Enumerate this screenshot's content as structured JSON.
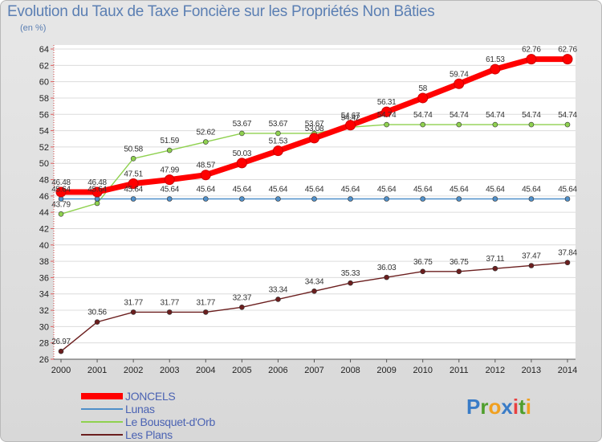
{
  "title": "Evolution du Taux de Taxe Foncière sur les Propriétés Non Bâties",
  "unit": "(en %)",
  "logo": "Proxiti",
  "chart_data": {
    "type": "line",
    "x": [
      "2000",
      "2001",
      "2002",
      "2003",
      "2004",
      "2005",
      "2006",
      "2007",
      "2008",
      "2009",
      "2010",
      "2011",
      "2012",
      "2013",
      "2014"
    ],
    "y_ticks": [
      "26",
      "28",
      "30",
      "32",
      "34",
      "36",
      "38",
      "40",
      "42",
      "44",
      "46",
      "48",
      "50",
      "52",
      "54",
      "56",
      "58",
      "60",
      "62",
      "64"
    ],
    "ylim": [
      26,
      64
    ],
    "series": [
      {
        "name": "JONCELS",
        "color": "#ff0000",
        "values": [
          46.48,
          46.48,
          47.51,
          47.99,
          48.57,
          50.03,
          51.53,
          53.08,
          54.67,
          56.31,
          58,
          59.74,
          61.53,
          62.76,
          62.76
        ],
        "labels": [
          "46.48",
          "46.48",
          "47.51",
          "47.99",
          "48.57",
          "50.03",
          "51.53",
          "53.08",
          "54.67",
          "56.31",
          "58",
          "59.74",
          "61.53",
          "62.76",
          "62.76"
        ]
      },
      {
        "name": "Lunas",
        "color": "#4f8fc9",
        "values": [
          45.64,
          45.64,
          45.64,
          45.64,
          45.64,
          45.64,
          45.64,
          45.64,
          45.64,
          45.64,
          45.64,
          45.64,
          45.64,
          45.64,
          45.64
        ],
        "labels": [
          "45.64",
          "45.64",
          "45.64",
          "45.64",
          "45.64",
          "45.64",
          "45.64",
          "45.64",
          "45.64",
          "45.64",
          "45.64",
          "45.64",
          "45.64",
          "45.64",
          "45.64"
        ]
      },
      {
        "name": "Le Bousquet-d'Orb",
        "color": "#8fd14f",
        "values": [
          43.79,
          45.1,
          50.58,
          51.59,
          52.62,
          53.67,
          53.67,
          53.67,
          54.42,
          54.74,
          54.74,
          54.74,
          54.74,
          54.74,
          54.74
        ],
        "labels": [
          "43.79",
          "",
          "50.58",
          "51.59",
          "52.62",
          "53.67",
          "53.67",
          "53.67",
          "54.42",
          "54.74",
          "54.74",
          "54.74",
          "54.74",
          "54.74",
          "54.74"
        ]
      },
      {
        "name": "Les Plans",
        "color": "#6b1e1e",
        "values": [
          26.97,
          30.56,
          31.77,
          31.77,
          31.77,
          32.37,
          33.34,
          34.34,
          35.33,
          36.03,
          36.75,
          36.75,
          37.11,
          37.47,
          37.84
        ],
        "labels": [
          "26.97",
          "30.56",
          "31.77",
          "31.77",
          "31.77",
          "32.37",
          "33.34",
          "34.34",
          "35.33",
          "36.03",
          "36.75",
          "36.75",
          "37.11",
          "37.47",
          "37.84"
        ]
      }
    ]
  }
}
